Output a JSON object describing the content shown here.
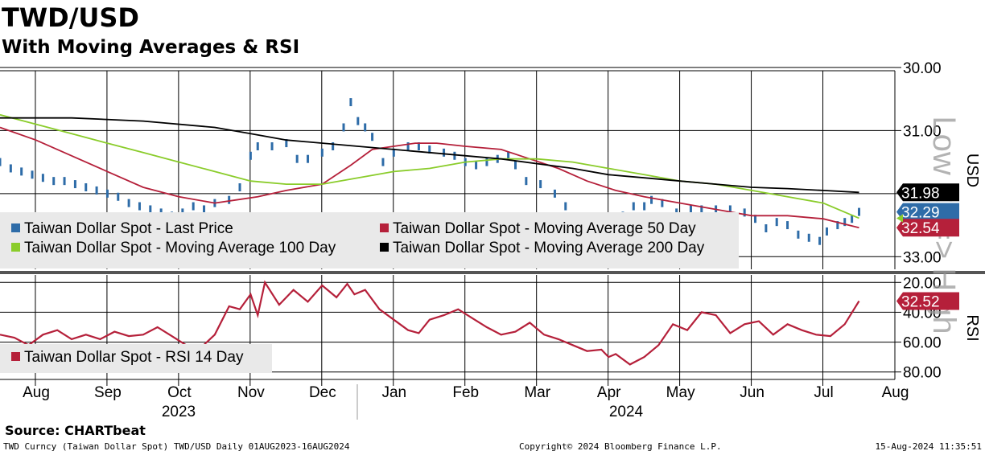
{
  "header": {
    "title": "TWD/USD",
    "subtitle": "With Moving Averages & RSI"
  },
  "footer": {
    "source": "Source: CHARTbeat",
    "security": "TWD Curncy (Taiwan Dollar Spot) TWD/USD  Daily 01AUG2023-16AUG2024",
    "copyright": "Copyright© 2024 Bloomberg Finance L.P.",
    "timestamp": "15-Aug-2024 11:35:51"
  },
  "watermark": "Low <==> High",
  "colors": {
    "price": "#2e6ca8",
    "ma50": "#b5203a",
    "ma100": "#8acc2a",
    "ma200": "#000000",
    "rsi": "#b5203a",
    "legend_bg": "#e9e9e9"
  },
  "chart_data": [
    {
      "type": "line",
      "panel": "price",
      "ylabel": "USD",
      "y_inverted": true,
      "ylim": [
        29.95,
        33.2
      ],
      "yticks": [
        "30.00",
        "31.00",
        "32.00",
        "33.00"
      ],
      "x_months": [
        "Aug",
        "Sep",
        "Oct",
        "Nov",
        "Dec",
        "Jan",
        "Feb",
        "Mar",
        "Apr",
        "May",
        "Jun",
        "Jul",
        "Aug"
      ],
      "x_years": [
        "2023",
        "2024"
      ],
      "x_range": [
        0,
        12.5
      ],
      "legend_placement": "bottom-left",
      "series": [
        {
          "name": "Taiwan Dollar Spot - Last Price",
          "style": "bars",
          "last_label": "32.29",
          "points": [
            [
              0,
              31.5
            ],
            [
              0.15,
              31.6
            ],
            [
              0.3,
              31.65
            ],
            [
              0.45,
              31.7
            ],
            [
              0.6,
              31.75
            ],
            [
              0.75,
              31.8
            ],
            [
              0.9,
              31.8
            ],
            [
              1.05,
              31.85
            ],
            [
              1.2,
              31.9
            ],
            [
              1.35,
              31.95
            ],
            [
              1.5,
              32.0
            ],
            [
              1.65,
              32.05
            ],
            [
              1.8,
              32.15
            ],
            [
              1.95,
              32.2
            ],
            [
              2.1,
              32.25
            ],
            [
              2.25,
              32.3
            ],
            [
              2.4,
              32.35
            ],
            [
              2.55,
              32.3
            ],
            [
              2.7,
              32.2
            ],
            [
              2.85,
              32.25
            ],
            [
              3.0,
              32.15
            ],
            [
              3.2,
              32.1
            ],
            [
              3.35,
              31.9
            ],
            [
              3.5,
              31.4
            ],
            [
              3.6,
              31.25
            ],
            [
              3.8,
              31.25
            ],
            [
              4.0,
              31.2
            ],
            [
              4.15,
              31.45
            ],
            [
              4.3,
              31.45
            ],
            [
              4.5,
              31.35
            ],
            [
              4.65,
              31.25
            ],
            [
              4.8,
              30.95
            ],
            [
              4.9,
              30.55
            ],
            [
              5.0,
              30.85
            ],
            [
              5.1,
              30.95
            ],
            [
              5.2,
              31.1
            ],
            [
              5.35,
              31.5
            ],
            [
              5.5,
              31.35
            ],
            [
              5.7,
              31.25
            ],
            [
              5.85,
              31.25
            ],
            [
              6.0,
              31.3
            ],
            [
              6.2,
              31.35
            ],
            [
              6.35,
              31.4
            ],
            [
              6.5,
              31.5
            ],
            [
              6.65,
              31.55
            ],
            [
              6.8,
              31.5
            ],
            [
              6.95,
              31.45
            ],
            [
              7.1,
              31.4
            ],
            [
              7.2,
              31.55
            ],
            [
              7.35,
              31.8
            ],
            [
              7.55,
              31.85
            ],
            [
              7.75,
              32.0
            ],
            [
              7.9,
              32.2
            ],
            [
              8.1,
              32.4
            ],
            [
              8.3,
              32.45
            ],
            [
              8.5,
              32.45
            ],
            [
              8.7,
              32.35
            ],
            [
              8.85,
              32.2
            ],
            [
              9.0,
              32.2
            ],
            [
              9.1,
              32.1
            ],
            [
              9.25,
              32.15
            ],
            [
              9.45,
              32.3
            ],
            [
              9.65,
              32.25
            ],
            [
              9.8,
              32.25
            ],
            [
              10.0,
              32.25
            ],
            [
              10.2,
              32.25
            ],
            [
              10.4,
              32.3
            ],
            [
              10.55,
              32.4
            ],
            [
              10.7,
              32.55
            ],
            [
              10.85,
              32.45
            ],
            [
              11.0,
              32.5
            ],
            [
              11.15,
              32.65
            ],
            [
              11.3,
              32.7
            ],
            [
              11.45,
              32.75
            ],
            [
              11.55,
              32.6
            ],
            [
              11.7,
              32.5
            ],
            [
              11.8,
              32.45
            ],
            [
              11.9,
              32.4
            ],
            [
              12.0,
              32.29
            ]
          ]
        },
        {
          "name": "Taiwan Dollar Spot - Moving Average 50 Day",
          "style": "line",
          "last_label": "32.54",
          "points": [
            [
              0,
              30.95
            ],
            [
              0.5,
              31.15
            ],
            [
              1.0,
              31.4
            ],
            [
              1.5,
              31.65
            ],
            [
              2.0,
              31.9
            ],
            [
              2.5,
              32.05
            ],
            [
              3.0,
              32.15
            ],
            [
              3.3,
              32.1
            ],
            [
              3.6,
              32.05
            ],
            [
              4.0,
              31.95
            ],
            [
              4.5,
              31.85
            ],
            [
              4.9,
              31.55
            ],
            [
              5.2,
              31.3
            ],
            [
              5.5,
              31.25
            ],
            [
              5.8,
              31.2
            ],
            [
              6.1,
              31.2
            ],
            [
              6.5,
              31.25
            ],
            [
              7.0,
              31.3
            ],
            [
              7.4,
              31.45
            ],
            [
              7.8,
              31.6
            ],
            [
              8.2,
              31.8
            ],
            [
              8.6,
              31.95
            ],
            [
              9.0,
              32.05
            ],
            [
              9.5,
              32.15
            ],
            [
              10.0,
              32.25
            ],
            [
              10.5,
              32.35
            ],
            [
              11.0,
              32.35
            ],
            [
              11.5,
              32.4
            ],
            [
              12.0,
              32.54
            ]
          ]
        },
        {
          "name": "Taiwan Dollar Spot - Moving Average 100 Day",
          "style": "line",
          "last_label": "",
          "points": [
            [
              0,
              30.75
            ],
            [
              0.5,
              30.9
            ],
            [
              1.0,
              31.05
            ],
            [
              1.5,
              31.2
            ],
            [
              2.0,
              31.35
            ],
            [
              2.5,
              31.5
            ],
            [
              3.0,
              31.65
            ],
            [
              3.5,
              31.8
            ],
            [
              4.0,
              31.85
            ],
            [
              4.5,
              31.85
            ],
            [
              5.0,
              31.75
            ],
            [
              5.5,
              31.65
            ],
            [
              6.0,
              31.6
            ],
            [
              6.5,
              31.5
            ],
            [
              7.0,
              31.45
            ],
            [
              7.5,
              31.45
            ],
            [
              8.0,
              31.5
            ],
            [
              8.5,
              31.6
            ],
            [
              9.0,
              31.7
            ],
            [
              9.5,
              31.8
            ],
            [
              10.0,
              31.85
            ],
            [
              10.5,
              31.95
            ],
            [
              11.0,
              32.05
            ],
            [
              11.5,
              32.15
            ],
            [
              12.0,
              32.39
            ]
          ]
        },
        {
          "name": "Taiwan Dollar Spot - Moving Average 200 Day",
          "style": "line",
          "last_label": "31.98",
          "points": [
            [
              0,
              30.8
            ],
            [
              1.0,
              30.8
            ],
            [
              2.0,
              30.85
            ],
            [
              3.0,
              30.95
            ],
            [
              3.5,
              31.05
            ],
            [
              4.0,
              31.15
            ],
            [
              5.0,
              31.25
            ],
            [
              6.0,
              31.35
            ],
            [
              7.0,
              31.45
            ],
            [
              8.0,
              31.6
            ],
            [
              8.5,
              31.7
            ],
            [
              9.0,
              31.75
            ],
            [
              9.5,
              31.8
            ],
            [
              10.0,
              31.85
            ],
            [
              10.5,
              31.9
            ],
            [
              11.0,
              31.92
            ],
            [
              11.5,
              31.95
            ],
            [
              12.0,
              31.98
            ]
          ]
        }
      ]
    },
    {
      "type": "line",
      "panel": "rsi",
      "ylabel": "RSI",
      "y_inverted": true,
      "ylim": [
        15,
        85
      ],
      "yticks": [
        "20.00",
        "40.00",
        "60.00",
        "80.00"
      ],
      "x_range": [
        0,
        12.5
      ],
      "legend_placement": "bottom-left",
      "series": [
        {
          "name": "Taiwan Dollar Spot - RSI 14 Day",
          "style": "line",
          "last_label": "32.52",
          "points": [
            [
              0,
              55
            ],
            [
              0.2,
              57
            ],
            [
              0.4,
              62
            ],
            [
              0.6,
              55
            ],
            [
              0.8,
              52
            ],
            [
              1.0,
              58
            ],
            [
              1.2,
              55
            ],
            [
              1.4,
              58
            ],
            [
              1.6,
              53
            ],
            [
              1.8,
              56
            ],
            [
              2.0,
              55
            ],
            [
              2.2,
              50
            ],
            [
              2.4,
              56
            ],
            [
              2.6,
              62
            ],
            [
              2.8,
              64
            ],
            [
              3.0,
              55
            ],
            [
              3.2,
              36
            ],
            [
              3.35,
              38
            ],
            [
              3.5,
              28
            ],
            [
              3.6,
              42
            ],
            [
              3.7,
              20
            ],
            [
              3.9,
              35
            ],
            [
              4.1,
              25
            ],
            [
              4.3,
              33
            ],
            [
              4.5,
              22
            ],
            [
              4.7,
              30
            ],
            [
              4.85,
              21
            ],
            [
              4.95,
              28
            ],
            [
              5.1,
              25
            ],
            [
              5.3,
              38
            ],
            [
              5.5,
              45
            ],
            [
              5.7,
              52
            ],
            [
              5.85,
              54
            ],
            [
              6.0,
              45
            ],
            [
              6.2,
              42
            ],
            [
              6.4,
              38
            ],
            [
              6.6,
              44
            ],
            [
              6.8,
              50
            ],
            [
              7.0,
              55
            ],
            [
              7.2,
              53
            ],
            [
              7.4,
              47
            ],
            [
              7.6,
              55
            ],
            [
              7.8,
              58
            ],
            [
              8.0,
              62
            ],
            [
              8.2,
              66
            ],
            [
              8.4,
              65
            ],
            [
              8.5,
              70
            ],
            [
              8.6,
              68
            ],
            [
              8.8,
              75
            ],
            [
              9.0,
              70
            ],
            [
              9.2,
              62
            ],
            [
              9.4,
              48
            ],
            [
              9.6,
              52
            ],
            [
              9.8,
              40
            ],
            [
              10.0,
              42
            ],
            [
              10.2,
              54
            ],
            [
              10.4,
              48
            ],
            [
              10.6,
              46
            ],
            [
              10.8,
              55
            ],
            [
              11.0,
              48
            ],
            [
              11.2,
              52
            ],
            [
              11.4,
              55
            ],
            [
              11.6,
              56
            ],
            [
              11.8,
              48
            ],
            [
              12.0,
              32.52
            ]
          ]
        }
      ]
    }
  ]
}
